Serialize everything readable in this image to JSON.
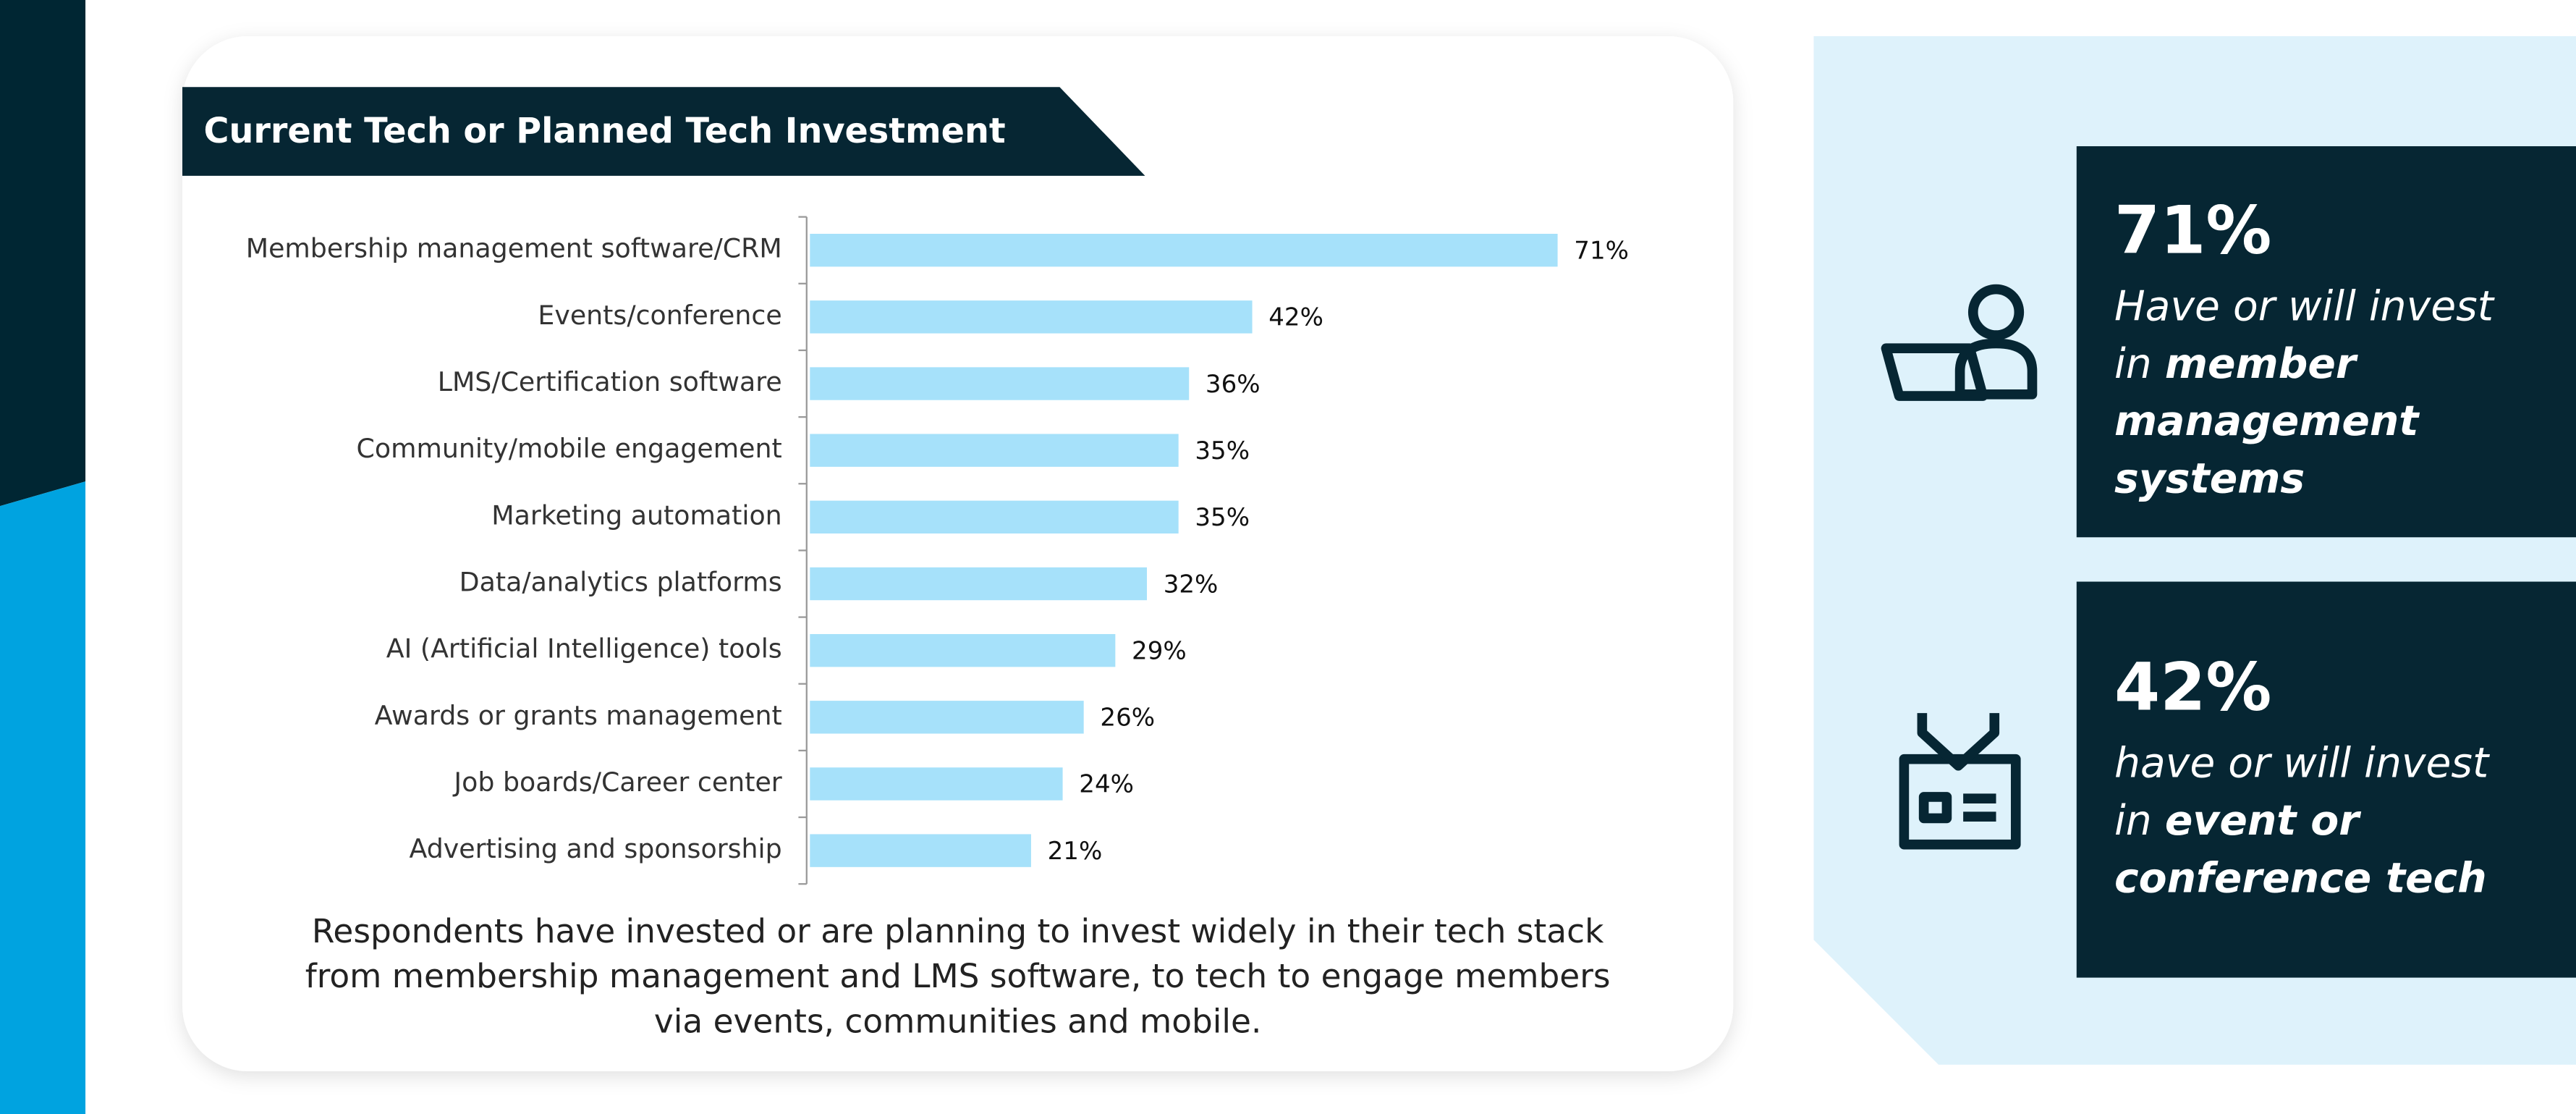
{
  "chart_data": {
    "type": "hbar",
    "title": "Current Tech or Planned Tech Investment",
    "categories": [
      "Membership management software/CRM",
      "Events/conference",
      "LMS/Certification software",
      "Community/mobile engagement",
      "Marketing automation",
      "Data/analytics platforms",
      "AI (Artificial Intelligence) tools",
      "Awards or grants management",
      "Job boards/Career center",
      "Advertising and sponsorship"
    ],
    "values": [
      71,
      42,
      36,
      35,
      35,
      32,
      29,
      26,
      24,
      21
    ],
    "value_labels": [
      "71%",
      "42%",
      "36%",
      "35%",
      "35%",
      "32%",
      "29%",
      "26%",
      "24%",
      "21%"
    ],
    "color": "#a6e1fa",
    "caption": [
      "Respondents have invested or are planning to invest widely in their tech stack",
      "from membership management and LMS software, to tech to engage members",
      "via events, communities and mobile."
    ]
  },
  "callouts": [
    {
      "stat": "71%",
      "lead": [
        "Have or will invest",
        "in"
      ],
      "emphasis": [
        "member",
        "management",
        "systems"
      ]
    },
    {
      "stat": "42%",
      "lead": [
        "have or will invest",
        "in"
      ],
      "emphasis": [
        "event or",
        "conference tech"
      ]
    }
  ]
}
